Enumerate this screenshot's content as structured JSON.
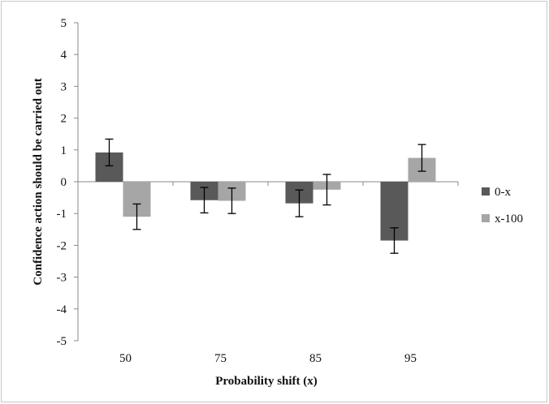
{
  "chart_data": {
    "type": "bar",
    "categories": [
      "50",
      "75",
      "85",
      "95"
    ],
    "series": [
      {
        "name": "0-x",
        "color": "#595959",
        "values": [
          0.92,
          -0.58,
          -0.68,
          -1.85
        ],
        "errors": [
          0.42,
          0.4,
          0.42,
          0.4
        ]
      },
      {
        "name": "x-100",
        "color": "#a6a6a6",
        "values": [
          -1.1,
          -0.6,
          -0.25,
          0.75
        ],
        "errors": [
          0.4,
          0.4,
          0.48,
          0.42
        ]
      }
    ],
    "title": "",
    "xlabel": "Probability shift (x)",
    "ylabel": "Confidence action should be carried out",
    "ylim": [
      -5,
      5
    ],
    "yticks": [
      5,
      4,
      3,
      2,
      1,
      0,
      -1,
      -2,
      -3,
      -4,
      -5
    ],
    "grid": false,
    "legend_position": "right"
  }
}
